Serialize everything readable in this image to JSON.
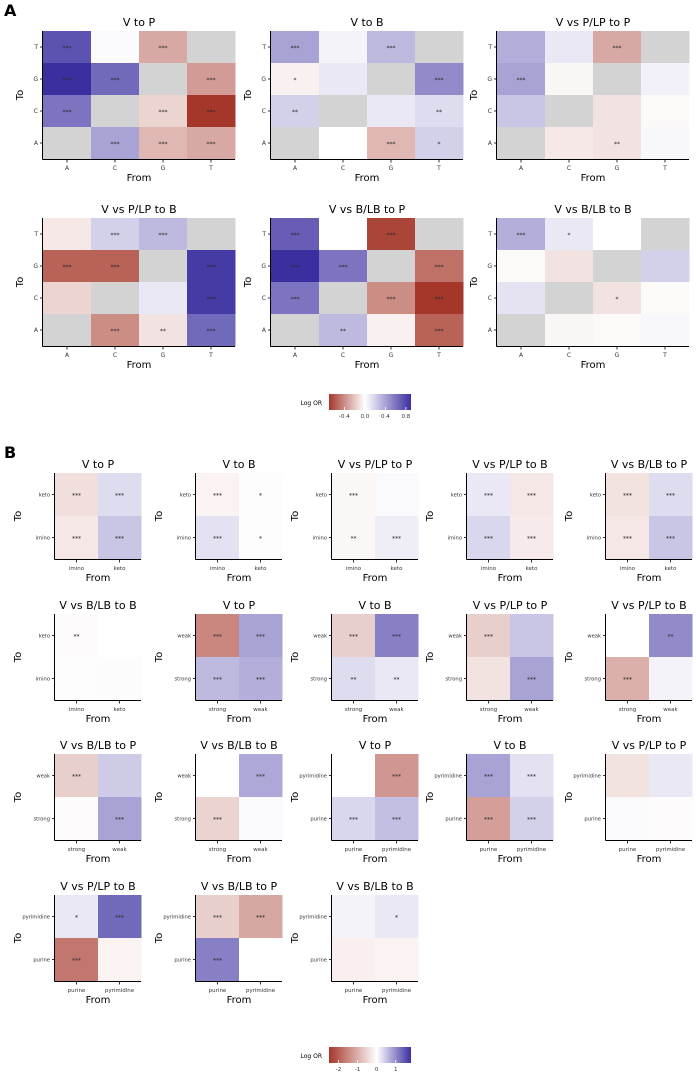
{
  "figure": {
    "panel_a_label": "A",
    "panel_b_label": "B"
  },
  "colors": {
    "negative": "#a5372a",
    "neutral": "#ffffff",
    "positive": "#3b2fa0",
    "missing": "#d3d3d3",
    "significance_text": "#2a2a2a"
  },
  "legend_a": {
    "title": "Log OR",
    "ticks": [
      -0.4,
      0.0,
      0.4,
      0.8
    ],
    "tick_labels": [
      "-0.4",
      "0.0",
      "0.4",
      "0.8"
    ],
    "min": -0.7,
    "max": 0.9
  },
  "legend_b": {
    "title": "Log OR",
    "ticks": [
      -2,
      -1,
      0,
      1
    ],
    "tick_labels": [
      "-2",
      "-1",
      "0",
      "1"
    ],
    "min": -2.5,
    "max": 1.8
  },
  "chart_data": [
    {
      "panel": "A",
      "type": "heatmap",
      "title": "V to P",
      "xlabel": "From",
      "ylabel": "To",
      "x_categories": [
        "A",
        "C",
        "G",
        "T"
      ],
      "y_categories": [
        "T",
        "G",
        "C",
        "A"
      ],
      "values": [
        [
          0.75,
          0.02,
          -0.3,
          null
        ],
        [
          0.9,
          0.65,
          null,
          -0.35
        ],
        [
          0.6,
          null,
          -0.15,
          -0.7
        ],
        [
          null,
          0.4,
          -0.25,
          -0.3
        ]
      ],
      "labels": [
        [
          "***",
          "",
          "***",
          ""
        ],
        [
          "***",
          "***",
          "",
          "***"
        ],
        [
          "***",
          "",
          "***",
          "***"
        ],
        [
          "",
          "***",
          "***",
          "***"
        ]
      ]
    },
    {
      "panel": "A",
      "type": "heatmap",
      "title": "V to B",
      "xlabel": "From",
      "ylabel": "To",
      "x_categories": [
        "A",
        "C",
        "G",
        "T"
      ],
      "y_categories": [
        "T",
        "G",
        "C",
        "A"
      ],
      "values": [
        [
          0.4,
          0.05,
          0.3,
          null
        ],
        [
          -0.05,
          0.1,
          null,
          0.5
        ],
        [
          0.2,
          null,
          0.1,
          0.15
        ],
        [
          null,
          0.0,
          -0.25,
          0.2
        ]
      ],
      "labels": [
        [
          "***",
          "",
          "***",
          ""
        ],
        [
          "*",
          "",
          "",
          "***"
        ],
        [
          "**",
          "",
          "",
          "**"
        ],
        [
          "",
          "",
          "***",
          "*"
        ]
      ]
    },
    {
      "panel": "A",
      "type": "heatmap",
      "title": "V vs P/LP to P",
      "xlabel": "From",
      "ylabel": "To",
      "x_categories": [
        "A",
        "C",
        "G",
        "T"
      ],
      "y_categories": [
        "T",
        "G",
        "C",
        "A"
      ],
      "values": [
        [
          0.35,
          0.1,
          -0.3,
          null
        ],
        [
          0.4,
          -0.03,
          null,
          0.06
        ],
        [
          0.25,
          null,
          -0.1,
          -0.02
        ],
        [
          null,
          -0.08,
          -0.1,
          0.03
        ]
      ],
      "labels": [
        [
          "",
          "",
          "***",
          ""
        ],
        [
          "***",
          "",
          "",
          ""
        ],
        [
          "",
          "",
          "",
          ""
        ],
        [
          "",
          "",
          "**",
          ""
        ]
      ]
    },
    {
      "panel": "A",
      "type": "heatmap",
      "title": "V vs P/LP to B",
      "xlabel": "From",
      "ylabel": "To",
      "x_categories": [
        "A",
        "C",
        "G",
        "T"
      ],
      "y_categories": [
        "T",
        "G",
        "C",
        "A"
      ],
      "values": [
        [
          -0.08,
          0.2,
          0.3,
          null
        ],
        [
          -0.55,
          -0.55,
          null,
          0.85
        ],
        [
          -0.15,
          null,
          0.1,
          0.85
        ],
        [
          null,
          -0.4,
          -0.1,
          0.65
        ]
      ],
      "labels": [
        [
          "",
          "***",
          "***",
          ""
        ],
        [
          "***",
          "***",
          "",
          "***"
        ],
        [
          "",
          "",
          "",
          "***"
        ],
        [
          "",
          "***",
          "**",
          "***"
        ]
      ]
    },
    {
      "panel": "A",
      "type": "heatmap",
      "title": "V vs B/LB to P",
      "xlabel": "From",
      "ylabel": "To",
      "x_categories": [
        "A",
        "C",
        "G",
        "T"
      ],
      "y_categories": [
        "T",
        "G",
        "C",
        "A"
      ],
      "values": [
        [
          0.7,
          0.0,
          -0.65,
          null
        ],
        [
          0.9,
          0.6,
          null,
          -0.5
        ],
        [
          0.6,
          null,
          -0.4,
          -0.85
        ],
        [
          null,
          0.3,
          -0.05,
          -0.55
        ]
      ],
      "labels": [
        [
          "***",
          "",
          "***",
          ""
        ],
        [
          "***",
          "***",
          "",
          "***"
        ],
        [
          "***",
          "",
          "***",
          "***"
        ],
        [
          "",
          "**",
          "",
          "***"
        ]
      ]
    },
    {
      "panel": "A",
      "type": "heatmap",
      "title": "V vs B/LB to B",
      "xlabel": "From",
      "ylabel": "To",
      "x_categories": [
        "A",
        "C",
        "G",
        "T"
      ],
      "y_categories": [
        "T",
        "G",
        "C",
        "A"
      ],
      "values": [
        [
          0.35,
          0.1,
          0.0,
          null
        ],
        [
          -0.02,
          -0.1,
          null,
          0.2
        ],
        [
          0.12,
          null,
          -0.1,
          -0.02
        ],
        [
          null,
          -0.03,
          -0.02,
          0.03
        ]
      ],
      "labels": [
        [
          "***",
          "*",
          "",
          ""
        ],
        [
          "",
          "",
          "",
          ""
        ],
        [
          "",
          "",
          "*",
          ""
        ],
        [
          "",
          "",
          "",
          ""
        ]
      ]
    },
    {
      "panel": "B",
      "type": "heatmap",
      "title": "V to P",
      "xlabel": "From",
      "ylabel": "To",
      "x_categories": [
        "imino",
        "keto"
      ],
      "y_categories": [
        "keto",
        "imino"
      ],
      "values": [
        [
          -0.4,
          0.3
        ],
        [
          -0.3,
          0.5
        ]
      ],
      "labels": [
        [
          "***",
          "***"
        ],
        [
          "***",
          "***"
        ]
      ]
    },
    {
      "panel": "B",
      "type": "heatmap",
      "title": "V to B",
      "xlabel": "From",
      "ylabel": "To",
      "x_categories": [
        "imino",
        "keto"
      ],
      "y_categories": [
        "keto",
        "imino"
      ],
      "values": [
        [
          -0.15,
          0.02
        ],
        [
          0.25,
          0.02
        ]
      ],
      "labels": [
        [
          "***",
          "*"
        ],
        [
          "***",
          "*"
        ]
      ]
    },
    {
      "panel": "B",
      "type": "heatmap",
      "title": "V vs P/LP to P",
      "xlabel": "From",
      "ylabel": "To",
      "x_categories": [
        "imino",
        "keto"
      ],
      "y_categories": [
        "keto",
        "imino"
      ],
      "values": [
        [
          -0.1,
          0.05
        ],
        [
          -0.1,
          0.15
        ]
      ],
      "labels": [
        [
          "***",
          ""
        ],
        [
          "**",
          "***"
        ]
      ]
    },
    {
      "panel": "B",
      "type": "heatmap",
      "title": "V vs P/LP to B",
      "xlabel": "From",
      "ylabel": "To",
      "x_categories": [
        "imino",
        "keto"
      ],
      "y_categories": [
        "keto",
        "imino"
      ],
      "values": [
        [
          0.2,
          -0.3
        ],
        [
          0.35,
          -0.25
        ]
      ],
      "labels": [
        [
          "***",
          "***"
        ],
        [
          "***",
          "***"
        ]
      ]
    },
    {
      "panel": "B",
      "type": "heatmap",
      "title": "V vs B/LB to P",
      "xlabel": "From",
      "ylabel": "To",
      "x_categories": [
        "imino",
        "keto"
      ],
      "y_categories": [
        "keto",
        "imino"
      ],
      "values": [
        [
          -0.35,
          0.3
        ],
        [
          -0.3,
          0.5
        ]
      ],
      "labels": [
        [
          "***",
          "***"
        ],
        [
          "***",
          "***"
        ]
      ]
    },
    {
      "panel": "B",
      "type": "heatmap",
      "title": "V vs B/LB to B",
      "xlabel": "From",
      "ylabel": "To",
      "x_categories": [
        "imino",
        "keto"
      ],
      "y_categories": [
        "keto",
        "imino"
      ],
      "values": [
        [
          -0.05,
          0.0
        ],
        [
          0.02,
          0.03
        ]
      ],
      "labels": [
        [
          "**",
          ""
        ],
        [
          "",
          ""
        ]
      ]
    },
    {
      "panel": "B",
      "type": "heatmap",
      "title": "V to P",
      "xlabel": "From",
      "ylabel": "To",
      "x_categories": [
        "strong",
        "weak"
      ],
      "y_categories": [
        "weak",
        "strong"
      ],
      "values": [
        [
          -1.5,
          0.8
        ],
        [
          0.6,
          0.7
        ]
      ],
      "labels": [
        [
          "***",
          "***"
        ],
        [
          "***",
          "***"
        ]
      ]
    },
    {
      "panel": "B",
      "type": "heatmap",
      "title": "V to B",
      "xlabel": "From",
      "ylabel": "To",
      "x_categories": [
        "strong",
        "weak"
      ],
      "y_categories": [
        "weak",
        "strong"
      ],
      "values": [
        [
          -0.6,
          1.1
        ],
        [
          0.3,
          0.2
        ]
      ],
      "labels": [
        [
          "***",
          "***"
        ],
        [
          "**",
          "**"
        ]
      ]
    },
    {
      "panel": "B",
      "type": "heatmap",
      "title": "V vs P/LP to P",
      "xlabel": "From",
      "ylabel": "To",
      "x_categories": [
        "strong",
        "weak"
      ],
      "y_categories": [
        "weak",
        "strong"
      ],
      "values": [
        [
          -0.6,
          0.5
        ],
        [
          -0.35,
          0.8
        ]
      ],
      "labels": [
        [
          "***",
          ""
        ],
        [
          "",
          "***"
        ]
      ]
    },
    {
      "panel": "B",
      "type": "heatmap",
      "title": "V vs P/LP to B",
      "xlabel": "From",
      "ylabel": "To",
      "x_categories": [
        "strong",
        "weak"
      ],
      "y_categories": [
        "weak",
        "strong"
      ],
      "values": [
        [
          0.0,
          1.0
        ],
        [
          -1.0,
          0.1
        ]
      ],
      "labels": [
        [
          "",
          "**"
        ],
        [
          "***",
          ""
        ]
      ]
    },
    {
      "panel": "B",
      "type": "heatmap",
      "title": "V vs B/LB to P",
      "xlabel": "From",
      "ylabel": "To",
      "x_categories": [
        "strong",
        "weak"
      ],
      "y_categories": [
        "weak",
        "strong"
      ],
      "values": [
        [
          -0.6,
          0.45
        ],
        [
          -0.05,
          0.8
        ]
      ],
      "labels": [
        [
          "***",
          ""
        ],
        [
          "",
          "***"
        ]
      ]
    },
    {
      "panel": "B",
      "type": "heatmap",
      "title": "V vs B/LB to B",
      "xlabel": "From",
      "ylabel": "To",
      "x_categories": [
        "strong",
        "weak"
      ],
      "y_categories": [
        "weak",
        "strong"
      ],
      "values": [
        [
          0.0,
          0.75
        ],
        [
          -0.55,
          0.05
        ]
      ],
      "labels": [
        [
          "",
          "***"
        ],
        [
          "***",
          ""
        ]
      ]
    },
    {
      "panel": "B",
      "type": "heatmap",
      "title": "V to P",
      "xlabel": "From",
      "ylabel": "To",
      "x_categories": [
        "purine",
        "pyrimidine"
      ],
      "y_categories": [
        "pyrimidine",
        "purine"
      ],
      "values": [
        [
          0.0,
          -1.3
        ],
        [
          0.35,
          0.55
        ]
      ],
      "labels": [
        [
          "",
          "***"
        ],
        [
          "***",
          "***"
        ]
      ]
    },
    {
      "panel": "B",
      "type": "heatmap",
      "title": "V to B",
      "xlabel": "From",
      "ylabel": "To",
      "x_categories": [
        "purine",
        "pyrimidine"
      ],
      "y_categories": [
        "pyrimidine",
        "purine"
      ],
      "values": [
        [
          0.8,
          0.25
        ],
        [
          -1.2,
          0.4
        ]
      ],
      "labels": [
        [
          "***",
          "***"
        ],
        [
          "***",
          "***"
        ]
      ]
    },
    {
      "panel": "B",
      "type": "heatmap",
      "title": "V vs P/LP to P",
      "xlabel": "From",
      "ylabel": "To",
      "x_categories": [
        "purine",
        "pyrimidine"
      ],
      "y_categories": [
        "pyrimidine",
        "purine"
      ],
      "values": [
        [
          -0.35,
          0.2
        ],
        [
          0.05,
          -0.05
        ]
      ],
      "labels": [
        [
          "",
          ""
        ],
        [
          "",
          ""
        ]
      ]
    },
    {
      "panel": "B",
      "type": "heatmap",
      "title": "V vs P/LP to B",
      "xlabel": "From",
      "ylabel": "To",
      "x_categories": [
        "purine",
        "pyrimidine"
      ],
      "y_categories": [
        "pyrimidine",
        "purine"
      ],
      "values": [
        [
          0.2,
          1.3
        ],
        [
          -1.7,
          -0.15
        ]
      ],
      "labels": [
        [
          "*",
          "***"
        ],
        [
          "***",
          ""
        ]
      ]
    },
    {
      "panel": "B",
      "type": "heatmap",
      "title": "V vs B/LB to P",
      "xlabel": "From",
      "ylabel": "To",
      "x_categories": [
        "purine",
        "pyrimidine"
      ],
      "y_categories": [
        "pyrimidine",
        "purine"
      ],
      "values": [
        [
          -0.6,
          -1.1
        ],
        [
          1.1,
          0.0
        ]
      ],
      "labels": [
        [
          "***",
          "***"
        ],
        [
          "***",
          ""
        ]
      ]
    },
    {
      "panel": "B",
      "type": "heatmap",
      "title": "V vs B/LB to B",
      "xlabel": "From",
      "ylabel": "To",
      "x_categories": [
        "purine",
        "pyrimidine"
      ],
      "y_categories": [
        "pyrimidine",
        "purine"
      ],
      "values": [
        [
          0.1,
          0.2
        ],
        [
          -0.2,
          -0.15
        ]
      ],
      "labels": [
        [
          "",
          "*"
        ],
        [
          "",
          ""
        ]
      ]
    }
  ]
}
